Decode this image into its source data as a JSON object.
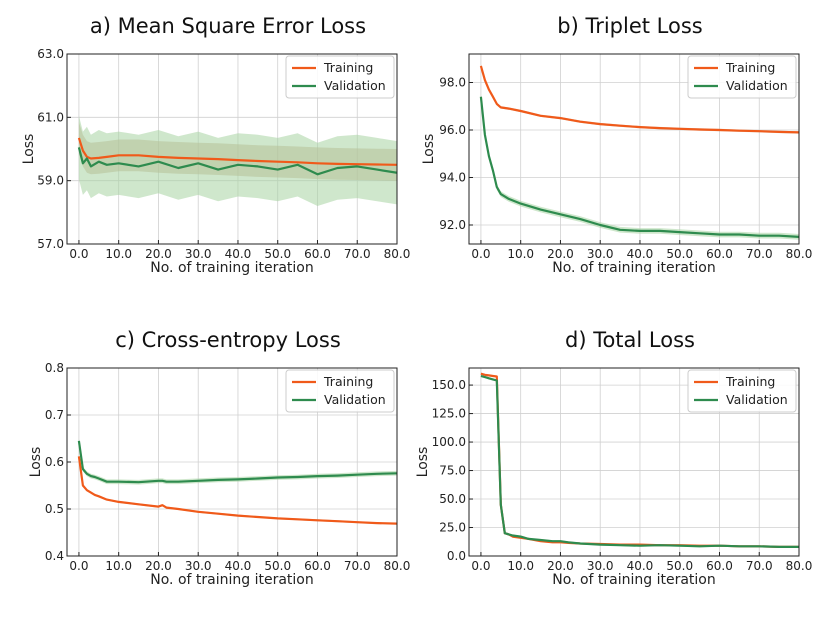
{
  "colors": {
    "training": "#f05a1a",
    "validation": "#2e8b4e",
    "band_training": "#c9a98a",
    "band_validation": "#a8d4a3"
  },
  "chart_data": [
    {
      "type": "line",
      "title": "a) Mean Square Error Loss",
      "xlabel": "No. of training iteration",
      "ylabel": "Loss",
      "xlim": [
        -3,
        80
      ],
      "ylim": [
        57.0,
        63.0
      ],
      "xticks": [
        0,
        10,
        20,
        30,
        40,
        50,
        60,
        70,
        80
      ],
      "xtick_labels": [
        "0.0",
        "10.0",
        "20.0",
        "30.0",
        "40.0",
        "50.0",
        "60.0",
        "70.0",
        "80.0"
      ],
      "yticks": [
        57,
        59,
        61,
        63
      ],
      "ytick_labels": [
        "57.0",
        "59.0",
        "61.0",
        "63.0"
      ],
      "legend": [
        "Training",
        "Validation"
      ],
      "x": [
        0,
        1,
        2,
        3,
        5,
        7,
        10,
        15,
        20,
        25,
        30,
        35,
        40,
        45,
        50,
        55,
        60,
        65,
        70,
        75,
        80
      ],
      "series": [
        {
          "name": "Training",
          "values": [
            60.35,
            59.95,
            59.75,
            59.7,
            59.72,
            59.75,
            59.8,
            59.8,
            59.75,
            59.72,
            59.7,
            59.68,
            59.65,
            59.62,
            59.6,
            59.58,
            59.55,
            59.53,
            59.52,
            59.51,
            59.5
          ],
          "band": 0.5
        },
        {
          "name": "Validation",
          "values": [
            60.05,
            59.55,
            59.7,
            59.45,
            59.6,
            59.5,
            59.55,
            59.45,
            59.6,
            59.4,
            59.55,
            59.35,
            59.5,
            59.45,
            59.35,
            59.5,
            59.2,
            59.4,
            59.45,
            59.35,
            59.25
          ],
          "band": 1.0
        }
      ]
    },
    {
      "type": "line",
      "title": "b) Triplet Loss",
      "xlabel": "No. of training iteration",
      "ylabel": "Loss",
      "xlim": [
        -3,
        80
      ],
      "ylim": [
        91.2,
        99.2
      ],
      "xticks": [
        0,
        10,
        20,
        30,
        40,
        50,
        60,
        70,
        80
      ],
      "xtick_labels": [
        "0.0",
        "10.0",
        "20.0",
        "30.0",
        "40.0",
        "50.0",
        "60.0",
        "70.0",
        "80.0"
      ],
      "yticks": [
        92,
        94,
        96,
        98
      ],
      "ytick_labels": [
        "92.0",
        "94.0",
        "96.0",
        "98.0"
      ],
      "legend": [
        "Training",
        "Validation"
      ],
      "x": [
        0,
        1,
        2,
        3,
        4,
        5,
        7,
        10,
        15,
        20,
        25,
        30,
        35,
        40,
        45,
        50,
        55,
        60,
        65,
        70,
        75,
        80
      ],
      "series": [
        {
          "name": "Training",
          "values": [
            98.7,
            98.1,
            97.7,
            97.4,
            97.1,
            96.95,
            96.9,
            96.8,
            96.6,
            96.5,
            96.35,
            96.25,
            96.18,
            96.12,
            96.08,
            96.05,
            96.02,
            96.0,
            95.97,
            95.95,
            95.92,
            95.9
          ],
          "band": 0.05
        },
        {
          "name": "Validation",
          "values": [
            97.4,
            95.8,
            94.9,
            94.3,
            93.6,
            93.3,
            93.1,
            92.9,
            92.65,
            92.45,
            92.25,
            92.0,
            91.8,
            91.75,
            91.75,
            91.7,
            91.65,
            91.6,
            91.6,
            91.55,
            91.55,
            91.5
          ],
          "band": 0.12
        }
      ]
    },
    {
      "type": "line",
      "title": "c) Cross-entropy Loss",
      "xlabel": "No. of training iteration",
      "ylabel": "Loss",
      "xlim": [
        -3,
        80
      ],
      "ylim": [
        0.4,
        0.8
      ],
      "xticks": [
        0,
        10,
        20,
        30,
        40,
        50,
        60,
        70,
        80
      ],
      "xtick_labels": [
        "0.0",
        "10.0",
        "20.0",
        "30.0",
        "40.0",
        "50.0",
        "60.0",
        "70.0",
        "80.0"
      ],
      "yticks": [
        0.4,
        0.5,
        0.6,
        0.7,
        0.8
      ],
      "ytick_labels": [
        "0.4",
        "0.5",
        "0.6",
        "0.7",
        "0.8"
      ],
      "legend": [
        "Training",
        "Validation"
      ],
      "x": [
        0,
        1,
        2,
        3,
        4,
        5,
        7,
        10,
        15,
        20,
        21,
        22,
        25,
        30,
        35,
        40,
        45,
        50,
        55,
        60,
        65,
        70,
        75,
        80
      ],
      "series": [
        {
          "name": "Training",
          "values": [
            0.612,
            0.55,
            0.54,
            0.535,
            0.53,
            0.527,
            0.52,
            0.515,
            0.51,
            0.505,
            0.508,
            0.503,
            0.5,
            0.494,
            0.49,
            0.486,
            0.483,
            0.48,
            0.478,
            0.476,
            0.474,
            0.472,
            0.47,
            0.469
          ],
          "band": 0.002
        },
        {
          "name": "Validation",
          "values": [
            0.645,
            0.585,
            0.575,
            0.57,
            0.568,
            0.565,
            0.558,
            0.558,
            0.557,
            0.56,
            0.56,
            0.558,
            0.558,
            0.56,
            0.562,
            0.563,
            0.565,
            0.567,
            0.568,
            0.57,
            0.571,
            0.573,
            0.575,
            0.576
          ],
          "band": 0.005
        }
      ]
    },
    {
      "type": "line",
      "title": "d) Total Loss",
      "xlabel": "No. of training iteration",
      "ylabel": "Loss",
      "xlim": [
        -3,
        80
      ],
      "ylim": [
        0,
        165
      ],
      "xticks": [
        0,
        10,
        20,
        30,
        40,
        50,
        60,
        70,
        80
      ],
      "xtick_labels": [
        "0.0",
        "10.0",
        "20.0",
        "30.0",
        "40.0",
        "50.0",
        "60.0",
        "70.0",
        "80.0"
      ],
      "yticks": [
        0,
        25,
        50,
        75,
        100,
        125,
        150
      ],
      "ytick_labels": [
        "0.0",
        "25.0",
        "50.0",
        "75.0",
        "100.0",
        "125.0",
        "150.0"
      ],
      "legend": [
        "Training",
        "Validation"
      ],
      "x": [
        0,
        1,
        2,
        3,
        4,
        5,
        6,
        7,
        8,
        10,
        12,
        15,
        18,
        20,
        22,
        25,
        30,
        35,
        40,
        45,
        50,
        55,
        60,
        65,
        70,
        75,
        80
      ],
      "series": [
        {
          "name": "Training",
          "values": [
            160,
            159,
            158.5,
            158,
            157.5,
            45,
            20,
            19,
            17,
            16,
            15,
            13,
            12,
            12,
            11.5,
            11,
            10.5,
            10,
            10,
            9.5,
            9.5,
            9,
            9,
            8.5,
            8.5,
            8,
            8
          ],
          "band": 0.5
        },
        {
          "name": "Validation",
          "values": [
            158,
            157,
            156,
            155,
            154,
            45,
            20,
            19,
            18,
            17,
            15,
            14,
            13,
            13,
            12,
            11,
            10,
            9.5,
            9,
            9.5,
            9,
            8.5,
            9,
            8.5,
            8.5,
            8,
            8
          ],
          "band": 0.8
        }
      ]
    }
  ]
}
